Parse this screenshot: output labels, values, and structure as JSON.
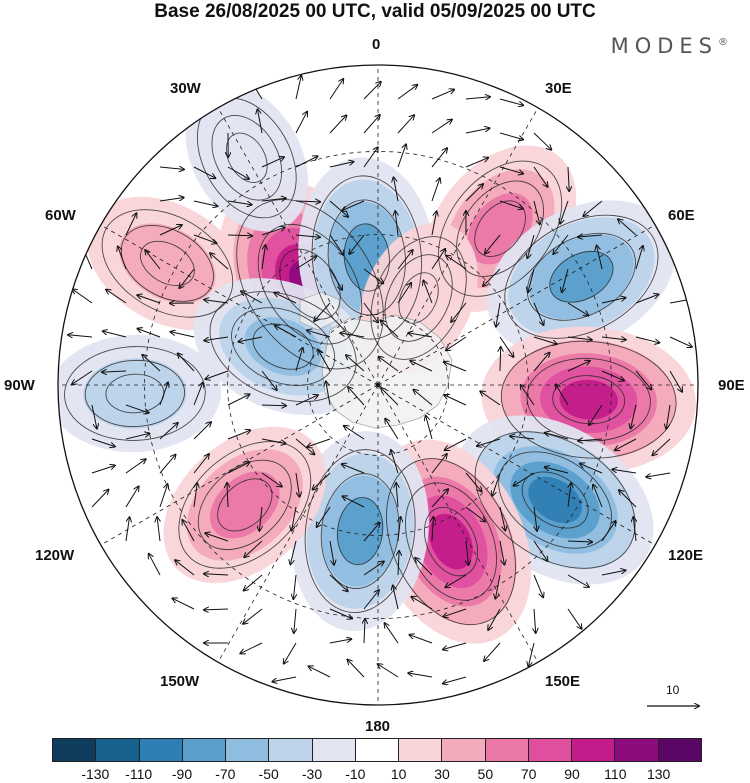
{
  "title": "Base 26/08/2025 00 UTC, valid 05/09/2025 00 UTC",
  "brand": "MODES",
  "brand_mark": "®",
  "longitude_labels": {
    "l0": "0",
    "l30e": "30E",
    "l60e": "60E",
    "l90e": "90E",
    "l120e": "120E",
    "l150e": "150E",
    "l180": "180",
    "l150w": "150W",
    "l120w": "120W",
    "l90w": "90W",
    "l60w": "60W",
    "l30w": "30W"
  },
  "reference_vector_label": "10",
  "legend": {
    "colors": [
      "#0f3d5e",
      "#17618f",
      "#2e7fb5",
      "#5a9fcc",
      "#8fbde0",
      "#bcd3ea",
      "#e2e4f1",
      "#ffffff",
      "#f9d4d8",
      "#f3aabb",
      "#ea77a6",
      "#df4f9e",
      "#c21b8a",
      "#8e0b7e",
      "#5c0766"
    ],
    "tick_labels": [
      "-130",
      "-110",
      "-90",
      "-70",
      "-50",
      "-30",
      "-10",
      "10",
      "30",
      "50",
      "70",
      "90",
      "110",
      "130"
    ]
  },
  "map_data": {
    "projection": "north polar stereographic",
    "field": "shaded anomaly with wind vectors",
    "anomaly_centers": [
      {
        "lon": 38,
        "colat": 0.62,
        "value": 70
      },
      {
        "lon": 62,
        "colat": 0.72,
        "value": -90
      },
      {
        "lon": 94,
        "colat": 0.66,
        "value": 110
      },
      {
        "lon": 123,
        "colat": 0.66,
        "value": -110
      },
      {
        "lon": 155,
        "colat": 0.54,
        "value": 110
      },
      {
        "lon": 187,
        "colat": 0.46,
        "value": -90
      },
      {
        "lon": 228,
        "colat": 0.56,
        "value": 70
      },
      {
        "lon": 268,
        "colat": 0.76,
        "value": -50
      },
      {
        "lon": 300,
        "colat": 0.76,
        "value": 50
      },
      {
        "lon": 326,
        "colat": 0.38,
        "value": 130
      },
      {
        "lon": 355,
        "colat": 0.4,
        "value": -90
      },
      {
        "lon": 292,
        "colat": 0.32,
        "value": -70
      },
      {
        "lon": 330,
        "colat": 0.82,
        "value": -30
      },
      {
        "lon": 25,
        "colat": 0.3,
        "value": 30
      }
    ]
  }
}
